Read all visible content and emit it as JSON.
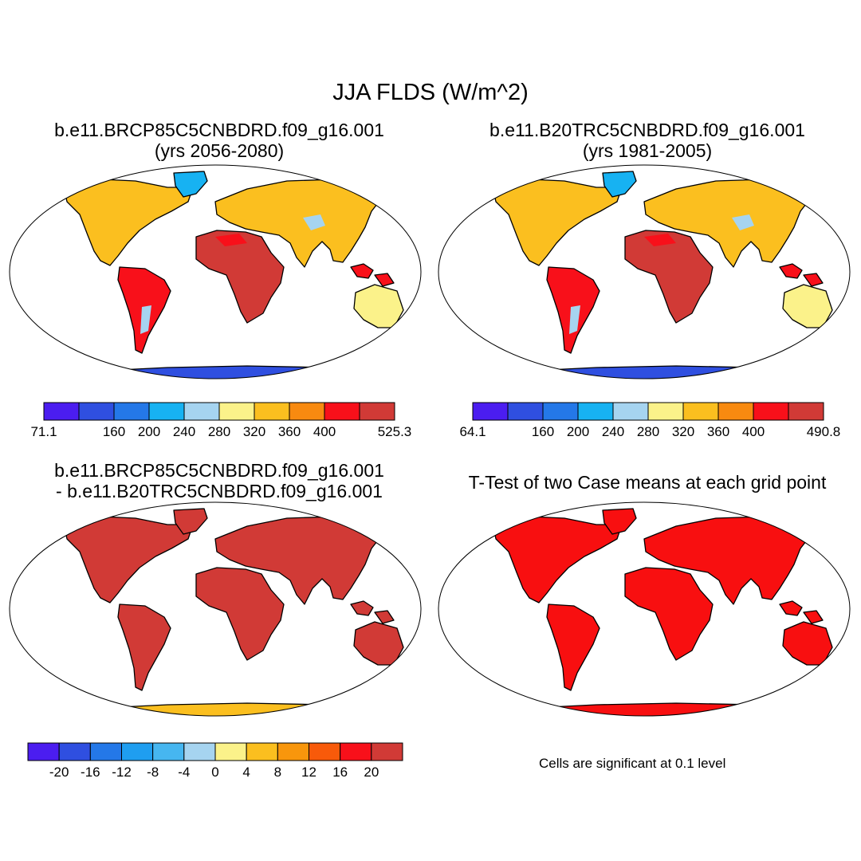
{
  "figure": {
    "title": "JJA FLDS (W/m^2)"
  },
  "panels": [
    {
      "name": "panel-rcp85",
      "title_line1": "b.e11.BRCP85C5CNBDRD.f09_g16.001",
      "title_line2": "(yrs 2056-2080)",
      "colorbar": {
        "colors": [
          "#4b1df0",
          "#2f4fe0",
          "#2478e8",
          "#17b2f2",
          "#a6d4f0",
          "#fbf28a",
          "#fbbf1f",
          "#f88a10",
          "#f8101a",
          "#d13a36"
        ],
        "labels": [
          "71.1",
          "160",
          "200",
          "240",
          "280",
          "320",
          "360",
          "400",
          "525.3"
        ],
        "label_boundaries": [
          0,
          2,
          3,
          4,
          5,
          6,
          7,
          8,
          10
        ]
      }
    },
    {
      "name": "panel-20tr",
      "title_line1": "b.e11.B20TRC5CNBDRD.f09_g16.001",
      "title_line2": "(yrs 1981-2005)",
      "colorbar": {
        "colors": [
          "#4b1df0",
          "#2f4fe0",
          "#2478e8",
          "#17b2f2",
          "#a6d4f0",
          "#fbf28a",
          "#fbbf1f",
          "#f88a10",
          "#f8101a",
          "#d13a36"
        ],
        "labels": [
          "64.1",
          "160",
          "200",
          "240",
          "280",
          "320",
          "360",
          "400",
          "490.8"
        ],
        "label_boundaries": [
          0,
          2,
          3,
          4,
          5,
          6,
          7,
          8,
          10
        ]
      }
    },
    {
      "name": "panel-difference",
      "title_line1": "b.e11.BRCP85C5CNBDRD.f09_g16.001",
      "title_line2": "- b.e11.B20TRC5CNBDRD.f09_g16.001",
      "colorbar": {
        "colors": [
          "#4b1df0",
          "#2f4fe0",
          "#2478e8",
          "#1f9ef0",
          "#46b6f0",
          "#a6d4f0",
          "#fbf28a",
          "#fbbf1f",
          "#f8960c",
          "#f85a0a",
          "#f8101a",
          "#d13a36"
        ],
        "labels": [
          "-20",
          "-16",
          "-12",
          "-8",
          "-4",
          "0",
          "4",
          "8",
          "12",
          "16",
          "20"
        ],
        "label_boundaries": [
          1,
          2,
          3,
          4,
          5,
          6,
          7,
          8,
          9,
          10,
          11
        ]
      }
    },
    {
      "name": "panel-ttest",
      "title_line1": "T-Test of two Case means at each grid point",
      "title_line2": "",
      "note": "Cells are significant at 0.1 level"
    }
  ]
}
